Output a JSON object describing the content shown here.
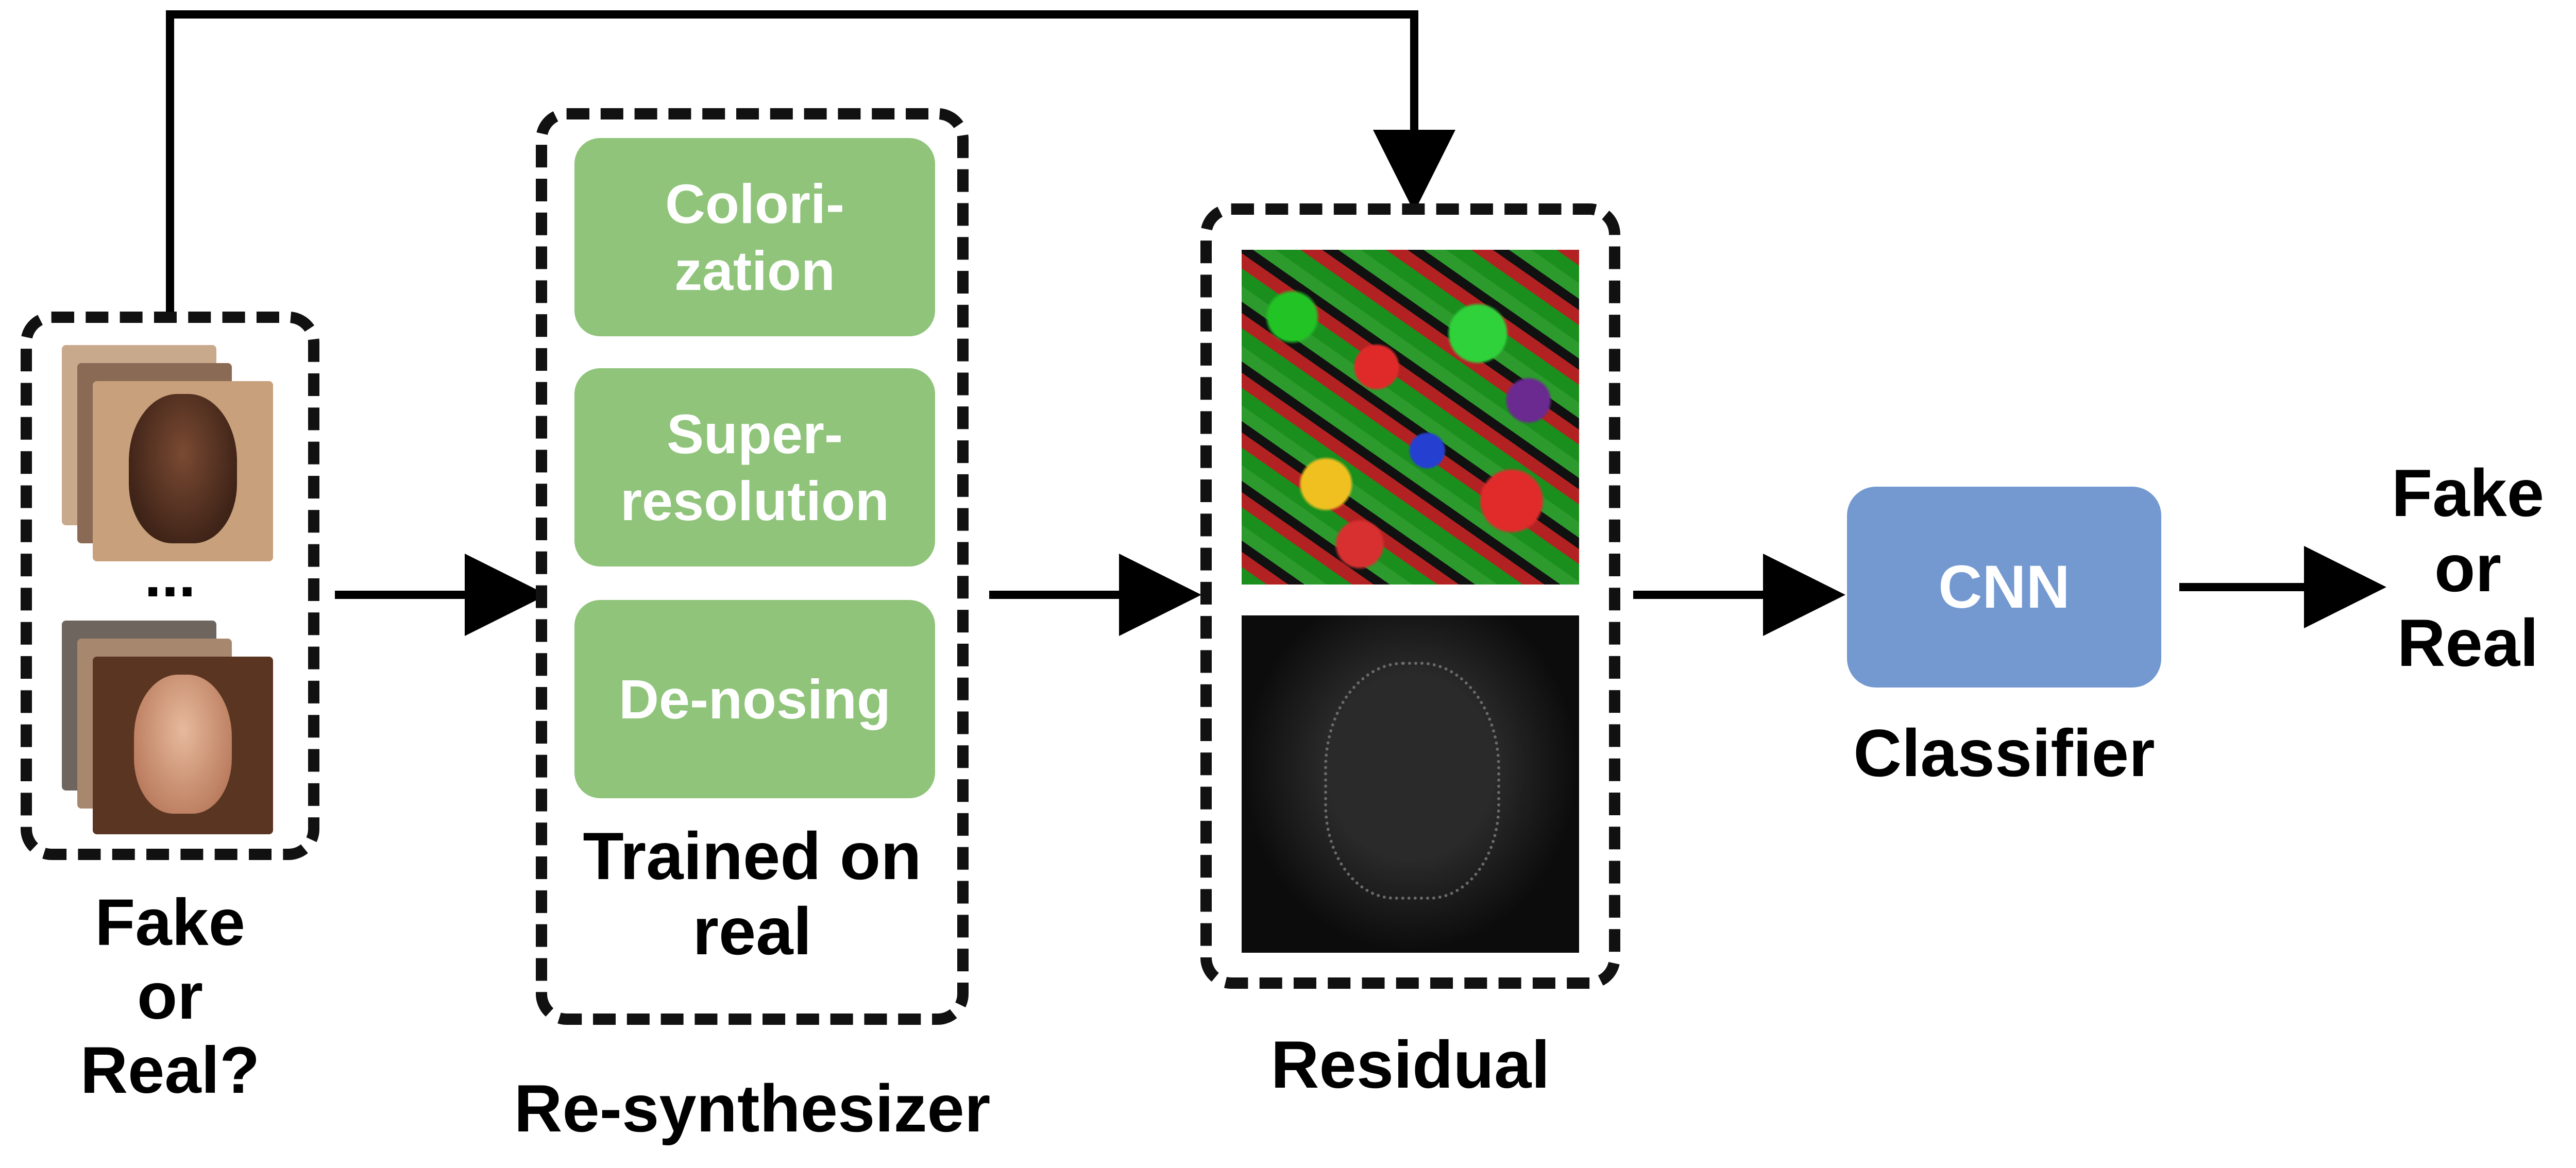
{
  "input": {
    "ellipsis": "...",
    "caption_lines": [
      "Fake",
      "or",
      "Real?"
    ]
  },
  "resynthesizer": {
    "tasks": [
      "Colori-\nzation",
      "Super-\nresolution",
      "De-nosing"
    ],
    "note_lines": [
      "Trained on",
      "real"
    ],
    "caption": "Re-synthesizer"
  },
  "residual": {
    "caption": "Residual"
  },
  "classifier": {
    "box_label": "CNN",
    "caption": "Classifier"
  },
  "output": {
    "caption_lines": [
      "Fake",
      "or",
      "Real"
    ]
  },
  "colors": {
    "task_box": "#8fc47a",
    "cnn_box": "#7399d0",
    "line": "#000000"
  }
}
